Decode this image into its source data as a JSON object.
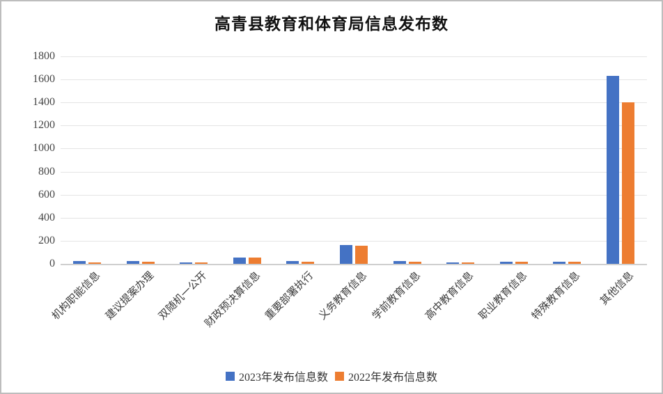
{
  "title": "高青县教育和体育局信息发布数",
  "colors": {
    "series_2023": "#4472C4",
    "series_2022": "#ED7D31",
    "gridline": "#e4e4e4",
    "axis_line": "#cfcfcf",
    "axis_text": "#444444",
    "frame_border": "#bdbdbd"
  },
  "chart_data": {
    "type": "bar",
    "title": "高青县教育和体育局信息发布数",
    "categories": [
      "机构职能信息",
      "建议提案办理",
      "双随机一公开",
      "财政预决算信息",
      "重要部署执行",
      "义务教育信息",
      "学前教育信息",
      "高中教育信息",
      "职业教育信息",
      "特殊教育信息",
      "其他信息"
    ],
    "series": [
      {
        "name": "2023年发布信息数",
        "color": "#4472C4",
        "values": [
          22,
          22,
          13,
          57,
          22,
          165,
          25,
          12,
          17,
          18,
          1630
        ]
      },
      {
        "name": "2022年发布信息数",
        "color": "#ED7D31",
        "values": [
          11,
          18,
          11,
          53,
          18,
          160,
          16,
          12,
          16,
          16,
          1400
        ]
      }
    ],
    "xlabel": "",
    "ylabel": "",
    "ylim": [
      0,
      1800
    ],
    "yticks": [
      0,
      200,
      400,
      600,
      800,
      1000,
      1200,
      1400,
      1600,
      1800
    ],
    "grid": true,
    "x_label_rotation_deg": 45,
    "legend_position": "bottom"
  }
}
